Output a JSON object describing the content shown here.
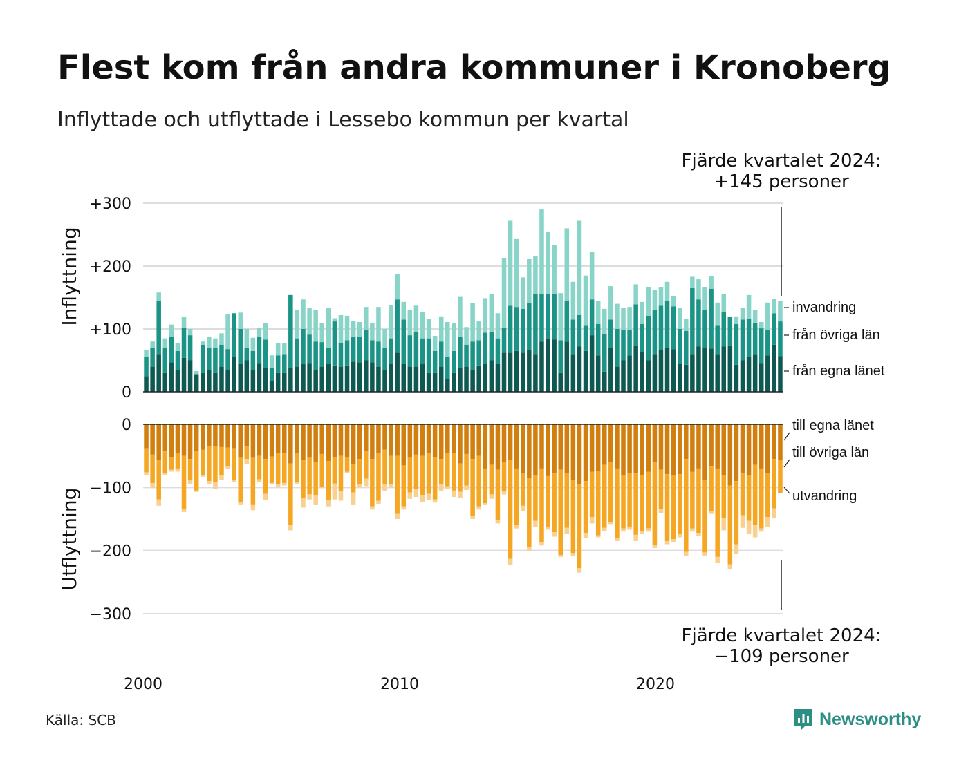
{
  "title": "Flest kom från andra kommuner i Kronoberg",
  "subtitle": "Inflyttade och utflyttade i Lessebo kommun per kvartal",
  "source": "Källa: SCB",
  "brand": "Newsworthy",
  "annotation_top": {
    "line1": "Fjärde kvartalet 2024:",
    "line2": "+145 personer"
  },
  "annotation_bottom": {
    "line1": "Fjärde kvartalet 2024:",
    "line2": "−109 personer"
  },
  "chart_data": {
    "type": "bar",
    "title": "Flest kom från andra kommuner i Kronoberg",
    "subtitle": "Inflyttade och utflyttade i Lessebo kommun per kvartal",
    "stacked": true,
    "x_ticks": [
      "2000",
      "2010",
      "2020"
    ],
    "top_panel": {
      "ylabel": "Inflyttning",
      "ylim": [
        0,
        300
      ],
      "y_ticks": [
        "0",
        "+100",
        "+200",
        "+300"
      ],
      "series": [
        {
          "name": "från egna länet",
          "color": "#0e5a52",
          "values": [
            25,
            40,
            60,
            30,
            47,
            35,
            54,
            50,
            28,
            30,
            35,
            30,
            40,
            35,
            55,
            45,
            50,
            35,
            46,
            38,
            18,
            30,
            30,
            38,
            40,
            45,
            46,
            35,
            40,
            45,
            42,
            40,
            42,
            48,
            47,
            50,
            47,
            40,
            35,
            45,
            62,
            45,
            40,
            40,
            45,
            30,
            30,
            40,
            20,
            30,
            38,
            40,
            35,
            42,
            44,
            50,
            45,
            62,
            62,
            65,
            62,
            66,
            60,
            80,
            85,
            83,
            30,
            80,
            60,
            72,
            65,
            90,
            58,
            32,
            70,
            40,
            50,
            58,
            74,
            63,
            50,
            60,
            67,
            70,
            68,
            45,
            43,
            60,
            72,
            70,
            69,
            60,
            72,
            74,
            43,
            50,
            55,
            60,
            46,
            58,
            75,
            57
          ]
        },
        {
          "name": "från övriga län",
          "color": "#1a9486",
          "values": [
            30,
            30,
            85,
            40,
            40,
            30,
            48,
            40,
            0,
            45,
            35,
            40,
            35,
            33,
            70,
            55,
            20,
            30,
            41,
            45,
            20,
            28,
            30,
            116,
            45,
            55,
            45,
            45,
            39,
            25,
            70,
            37,
            40,
            40,
            40,
            48,
            35,
            40,
            35,
            40,
            85,
            70,
            50,
            55,
            40,
            55,
            35,
            40,
            35,
            35,
            50,
            35,
            45,
            40,
            50,
            45,
            40,
            40,
            75,
            70,
            70,
            75,
            96,
            75,
            70,
            73,
            52,
            64,
            55,
            50,
            40,
            57,
            50,
            60,
            45,
            60,
            48,
            40,
            65,
            45,
            71,
            70,
            70,
            75,
            68,
            55,
            54,
            105,
            75,
            60,
            95,
            45,
            55,
            45,
            65,
            65,
            61,
            50,
            55,
            40,
            50,
            55
          ]
        },
        {
          "name": "invandring",
          "color": "#89d4c8",
          "values": [
            12,
            10,
            13,
            15,
            20,
            13,
            17,
            10,
            5,
            5,
            18,
            15,
            18,
            55,
            0,
            26,
            30,
            21,
            15,
            26,
            20,
            20,
            17,
            0,
            45,
            47,
            42,
            50,
            30,
            63,
            5,
            45,
            39,
            25,
            24,
            37,
            28,
            55,
            30,
            53,
            40,
            28,
            40,
            42,
            42,
            31,
            24,
            40,
            56,
            44,
            63,
            28,
            61,
            30,
            55,
            60,
            40,
            110,
            135,
            108,
            50,
            70,
            60,
            135,
            100,
            78,
            75,
            116,
            60,
            150,
            80,
            75,
            37,
            40,
            53,
            40,
            36,
            37,
            32,
            35,
            45,
            32,
            29,
            30,
            16,
            33,
            19,
            18,
            32,
            36,
            20,
            37,
            28,
            0,
            12,
            18,
            38,
            20,
            10,
            44,
            23,
            33
          ]
        }
      ]
    },
    "bottom_panel": {
      "ylabel": "Utflyttning",
      "ylim": [
        -300,
        0
      ],
      "y_ticks": [
        "0",
        "−100",
        "−200",
        "−300"
      ],
      "series": [
        {
          "name": "till egna länet",
          "color": "#d17f0e",
          "values": [
            -38,
            -48,
            -57,
            -43,
            -52,
            -45,
            -50,
            -55,
            -42,
            -40,
            -35,
            -34,
            -36,
            -37,
            -38,
            -53,
            -35,
            -53,
            -50,
            -55,
            -51,
            -45,
            -46,
            -62,
            -46,
            -57,
            -53,
            -60,
            -47,
            -58,
            -52,
            -50,
            -52,
            -63,
            -55,
            -43,
            -55,
            -46,
            -40,
            -50,
            -50,
            -65,
            -53,
            -48,
            -50,
            -45,
            -52,
            -55,
            -45,
            -45,
            -62,
            -47,
            -55,
            -50,
            -70,
            -64,
            -72,
            -60,
            -57,
            -70,
            -77,
            -85,
            -80,
            -70,
            -82,
            -78,
            -72,
            -77,
            -88,
            -95,
            -90,
            -75,
            -74,
            -64,
            -60,
            -70,
            -80,
            -77,
            -78,
            -80,
            -75,
            -60,
            -72,
            -79,
            -80,
            -79,
            -55,
            -75,
            -70,
            -88,
            -67,
            -70,
            -80,
            -97,
            -90,
            -78,
            -80,
            -64,
            -70,
            -77,
            -55,
            -56
          ]
        },
        {
          "name": "till övriga län",
          "color": "#f5a623",
          "values": [
            -38,
            -45,
            -62,
            -35,
            -20,
            -25,
            -84,
            -34,
            -63,
            -40,
            -55,
            -58,
            -45,
            -30,
            -50,
            -70,
            -20,
            -75,
            -37,
            -55,
            -42,
            -50,
            -47,
            -98,
            -45,
            -60,
            -58,
            -53,
            -52,
            -62,
            -42,
            -56,
            -23,
            -45,
            -40,
            -43,
            -75,
            -75,
            -55,
            -45,
            -92,
            -65,
            -55,
            -55,
            -63,
            -65,
            -67,
            -40,
            -53,
            -60,
            -45,
            -50,
            -90,
            -80,
            -55,
            -47,
            -80,
            -46,
            -156,
            -90,
            -52,
            -110,
            -73,
            -117,
            -80,
            -93,
            -135,
            -87,
            -116,
            -133,
            -82,
            -72,
            -102,
            -100,
            -95,
            -110,
            -85,
            -85,
            -97,
            -89,
            -90,
            -131,
            -62,
            -106,
            -102,
            -95,
            -147,
            -90,
            -102,
            -115,
            -70,
            -140,
            -68,
            -125,
            -100,
            -66,
            -73,
            -95,
            -95,
            -70,
            -78,
            -53
          ]
        },
        {
          "name": "utvandring",
          "color": "#f8d08f",
          "values": [
            -5,
            -8,
            -10,
            -3,
            -3,
            -5,
            -5,
            -5,
            -2,
            -3,
            -5,
            -10,
            -7,
            -3,
            -3,
            -5,
            -8,
            -8,
            -5,
            -10,
            -2,
            -5,
            -4,
            -8,
            -3,
            -15,
            -8,
            -15,
            -2,
            -10,
            -25,
            -15,
            -2,
            -20,
            -5,
            -12,
            -5,
            -5,
            -10,
            -5,
            -8,
            -5,
            -10,
            -12,
            -10,
            -10,
            -5,
            -10,
            -5,
            -10,
            -10,
            -7,
            -5,
            -5,
            -3,
            -7,
            -5,
            -5,
            -10,
            -5,
            -8,
            -5,
            -10,
            -5,
            -5,
            -7,
            -3,
            -10,
            -5,
            -7,
            -8,
            -10,
            -3,
            -5,
            -3,
            -5,
            -5,
            -5,
            -10,
            -5,
            -5,
            -5,
            -7,
            -5,
            -5,
            -5,
            -7,
            -5,
            -5,
            -5,
            -5,
            -10,
            -20,
            -8,
            -15,
            -20,
            -20,
            -20,
            -5,
            -15,
            -15,
            0
          ]
        }
      ]
    },
    "legend_top": [
      "invandring",
      "från övriga län",
      "från egna länet"
    ],
    "legend_bottom": [
      "till egna länet",
      "till övriga län",
      "utvandring"
    ]
  }
}
